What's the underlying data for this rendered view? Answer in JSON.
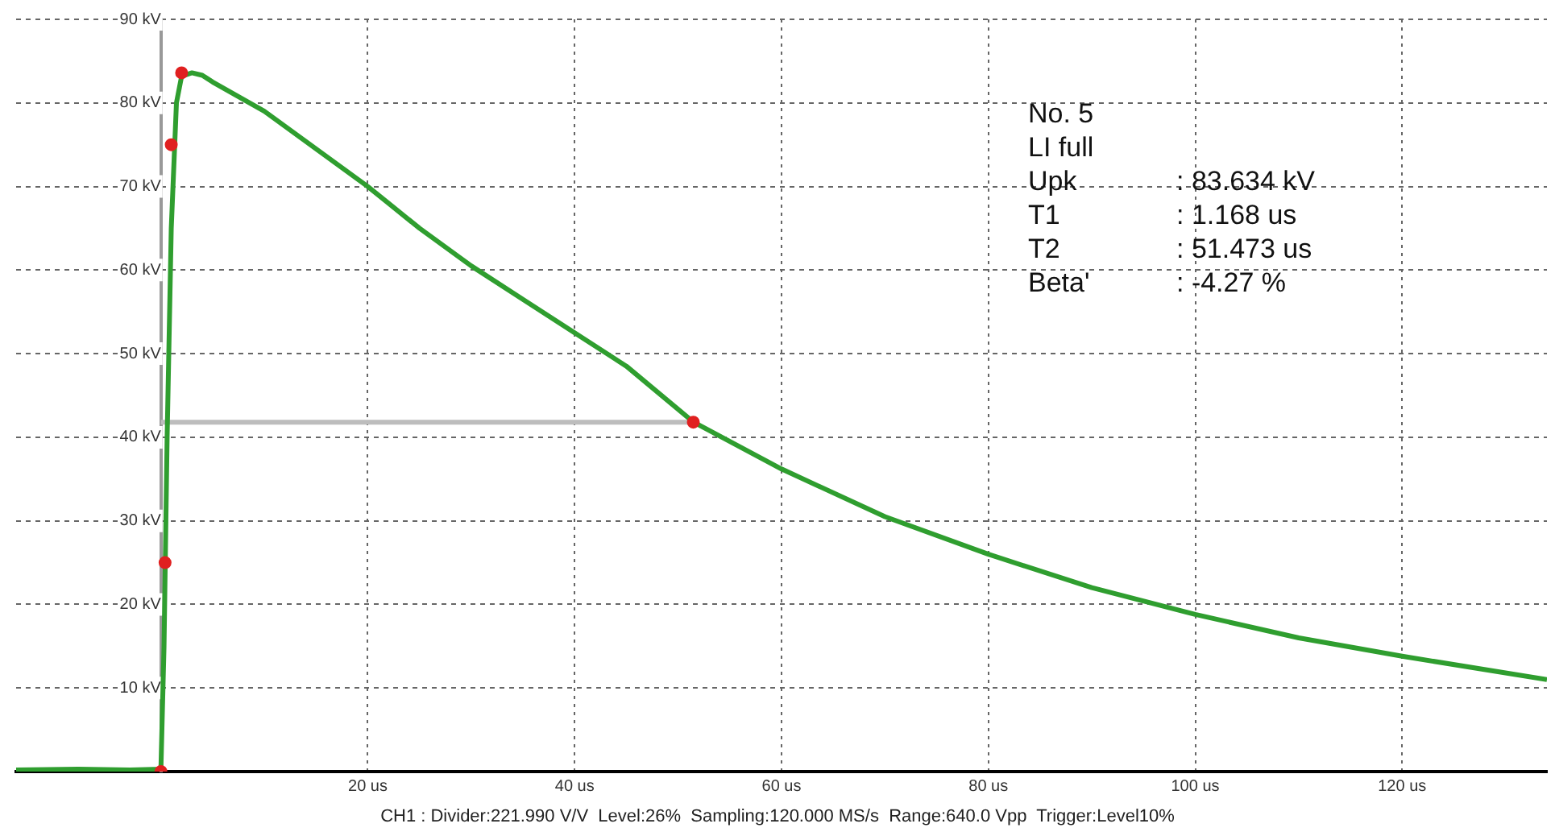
{
  "chart_data": {
    "type": "line",
    "grid": true,
    "legend": false,
    "marker": "none",
    "line_style": "solid",
    "xlim": [
      -14,
      134
    ],
    "ylim": [
      0,
      90
    ],
    "xticks": [
      {
        "value": 20,
        "label": "20 us"
      },
      {
        "value": 40,
        "label": "40 us"
      },
      {
        "value": 60,
        "label": "60 us"
      },
      {
        "value": 80,
        "label": "80 us"
      },
      {
        "value": 100,
        "label": "100 us"
      },
      {
        "value": 120,
        "label": "120 us"
      }
    ],
    "yticks": [
      {
        "value": 10,
        "label": "10 kV"
      },
      {
        "value": 20,
        "label": "20 kV"
      },
      {
        "value": 30,
        "label": "30 kV"
      },
      {
        "value": 40,
        "label": "40 kV"
      },
      {
        "value": 50,
        "label": "50 kV"
      },
      {
        "value": 60,
        "label": "60 kV"
      },
      {
        "value": 70,
        "label": "70 kV"
      },
      {
        "value": 80,
        "label": "80 kV"
      },
      {
        "value": 90,
        "label": "90 kV"
      }
    ],
    "series": [
      {
        "type": "line",
        "color": "#bdbdbd",
        "x": [
          0,
          51.473
        ],
        "values": [
          41.8,
          41.8
        ]
      },
      {
        "type": "line",
        "color": "#2f9e2f",
        "x": [
          -14,
          -8,
          -3,
          0,
          0.3,
          0.6,
          1,
          1.5,
          2,
          3,
          4,
          5,
          10,
          15,
          20,
          25,
          30,
          35,
          40,
          45,
          51.5,
          60,
          70,
          80,
          90,
          100,
          110,
          120,
          134
        ],
        "values": [
          0.2,
          0.3,
          0.2,
          0.3,
          15,
          40,
          65,
          80,
          83.2,
          83.6,
          83.3,
          82.5,
          79,
          74.5,
          70,
          65,
          60.5,
          56.5,
          52.5,
          48.5,
          41.8,
          36.2,
          30.5,
          26,
          22,
          18.8,
          16,
          13.8,
          11
        ]
      },
      {
        "type": "scatter",
        "marker": "circle",
        "color": "#e02020",
        "x": [
          0,
          0.4,
          1,
          2,
          51.473
        ],
        "values": [
          0,
          25,
          75,
          83.6,
          41.8
        ]
      }
    ],
    "annotations": [
      "No. 5",
      "LI full",
      "Upk : 83.634 kV",
      "T1 : 1.168 us",
      "T2 : 51.473 us",
      "Beta' : -4.27 %",
      "CH1 : Divider:221.990 V/V  Level:26%  Sampling:120.000 MS/s  Range:640.0 Vpp  Trigger:Level10%"
    ]
  }
}
